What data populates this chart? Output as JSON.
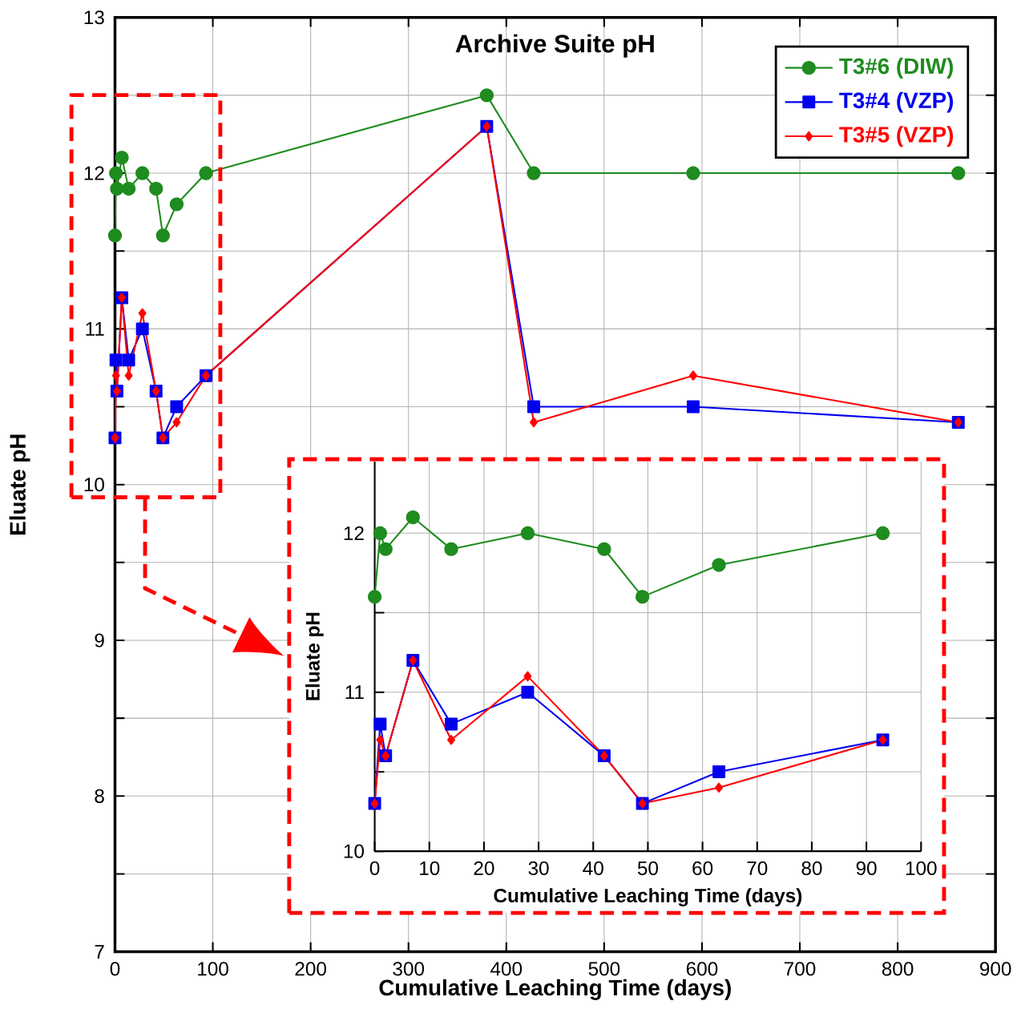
{
  "chart_data": [
    {
      "type": "line",
      "title": "Archive Suite pH",
      "xlabel": "Cumulative Leaching Time (days)",
      "ylabel": "Eluate pH",
      "xlim": [
        0,
        900
      ],
      "ylim": [
        7,
        13
      ],
      "xticks": [
        0,
        100,
        200,
        300,
        400,
        500,
        600,
        700,
        800,
        900
      ],
      "yticks": [
        7,
        {
          "value": 7.5,
          "label": null
        },
        8,
        {
          "value": 8.5,
          "label": null
        },
        9,
        {
          "value": 9.5,
          "label": null
        },
        10,
        {
          "value": 10.5,
          "label": null
        },
        11,
        {
          "value": 11.5,
          "label": null
        },
        12,
        {
          "value": 12.5,
          "label": null
        },
        13
      ],
      "grid": true,
      "legend": "top right",
      "line_style": "solid",
      "series": [
        {
          "name": "T3#6 (DIW)",
          "color": "#1e8c1e",
          "marker": "circle",
          "x": [
            0,
            1,
            2,
            7,
            14,
            28,
            42,
            49,
            63,
            93,
            380,
            428,
            591,
            862
          ],
          "values": [
            11.6,
            12.0,
            11.9,
            12.1,
            11.9,
            12.0,
            11.9,
            11.6,
            11.8,
            12.0,
            12.5,
            12.0,
            12.0,
            12.0
          ]
        },
        {
          "name": "T3#4 (VZP)",
          "color": "#0000ee",
          "marker": "square",
          "x": [
            0,
            1,
            2,
            7,
            14,
            28,
            42,
            49,
            63,
            93,
            380,
            428,
            591,
            862
          ],
          "values": [
            10.3,
            10.8,
            10.6,
            11.2,
            10.8,
            11.0,
            10.6,
            10.3,
            10.5,
            10.7,
            12.3,
            10.5,
            10.5,
            10.4
          ]
        },
        {
          "name": "T3#5 (VZP)",
          "color": "#ff0000",
          "marker": "diamond",
          "x": [
            0,
            1,
            2,
            7,
            14,
            28,
            42,
            49,
            63,
            93,
            380,
            428,
            591,
            862
          ],
          "values": [
            10.3,
            10.7,
            10.6,
            11.2,
            10.7,
            11.1,
            10.6,
            10.3,
            10.4,
            10.7,
            12.3,
            10.4,
            10.7,
            10.4
          ]
        }
      ]
    },
    {
      "type": "line",
      "xlabel": "Cumulative Leaching Time (days)",
      "ylabel": "Eluate pH",
      "xlim": [
        0,
        100
      ],
      "ylim": [
        10,
        12.45
      ],
      "xticks": [
        0,
        10,
        20,
        30,
        40,
        50,
        60,
        70,
        80,
        90,
        100
      ],
      "yticks": [
        10,
        {
          "value": 10.5,
          "label": null
        },
        11,
        {
          "value": 11.5,
          "label": null
        },
        12
      ],
      "grid": true,
      "line_style": "solid",
      "series": [
        {
          "color": "#1e8c1e",
          "marker": "circle",
          "x": [
            0,
            1,
            2,
            7,
            14,
            28,
            42,
            49,
            63,
            93
          ],
          "values": [
            11.6,
            12.0,
            11.9,
            12.1,
            11.9,
            12.0,
            11.9,
            11.6,
            11.8,
            12.0
          ]
        },
        {
          "color": "#0000ee",
          "marker": "square",
          "x": [
            0,
            1,
            2,
            7,
            14,
            28,
            42,
            49,
            63,
            93
          ],
          "values": [
            10.3,
            10.8,
            10.6,
            11.2,
            10.8,
            11.0,
            10.6,
            10.3,
            10.5,
            10.7
          ]
        },
        {
          "color": "#ff0000",
          "marker": "diamond",
          "x": [
            0,
            1,
            2,
            7,
            14,
            28,
            42,
            49,
            63,
            93
          ],
          "values": [
            10.3,
            10.7,
            10.6,
            11.2,
            10.7,
            11.1,
            10.6,
            10.3,
            10.4,
            10.7
          ]
        }
      ]
    }
  ]
}
